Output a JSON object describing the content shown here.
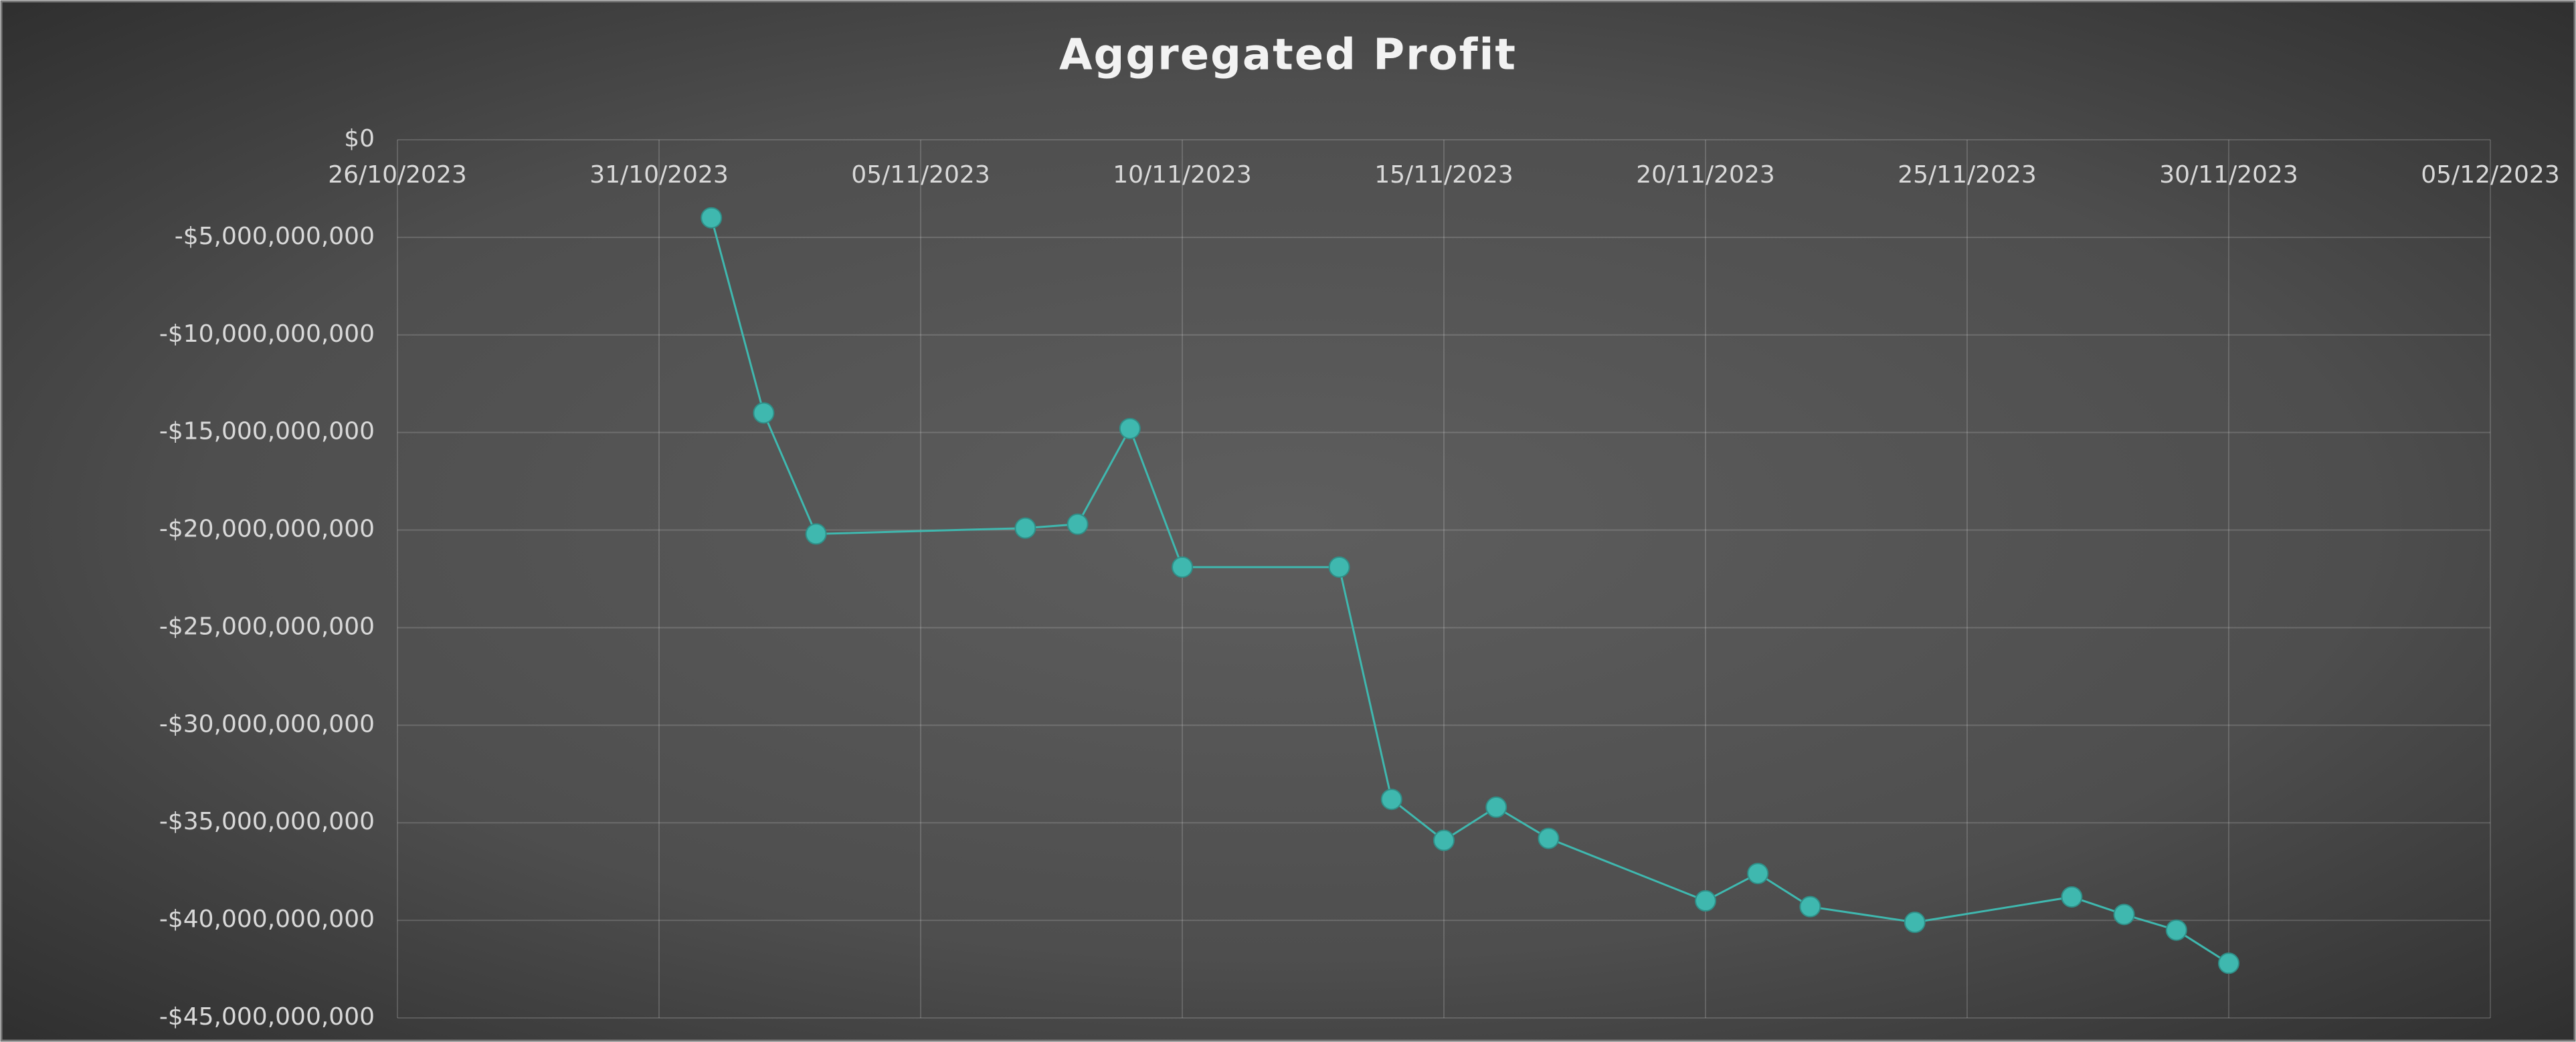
{
  "chart_data": {
    "type": "line",
    "title": "Aggregated Profit",
    "x": [
      "2023-11-01",
      "2023-11-02",
      "2023-11-03",
      "2023-11-07",
      "2023-11-08",
      "2023-11-09",
      "2023-11-10",
      "2023-11-13",
      "2023-11-14",
      "2023-11-15",
      "2023-11-16",
      "2023-11-17",
      "2023-11-20",
      "2023-11-21",
      "2023-11-22",
      "2023-11-24",
      "2023-11-27",
      "2023-11-28",
      "2023-11-29",
      "2023-11-30"
    ],
    "values": [
      -4000000000,
      -14000000000,
      -20200000000,
      -19900000000,
      -19700000000,
      -14800000000,
      -21900000000,
      -21900000000,
      -33800000000,
      -35900000000,
      -34200000000,
      -35800000000,
      -39000000000,
      -37600000000,
      -39300000000,
      -40100000000,
      -38800000000,
      -39700000000,
      -40500000000,
      -42200000000
    ],
    "color": "#3fb8af",
    "xlim": [
      "2023-10-26",
      "2023-12-05"
    ],
    "xticks": [
      {
        "value": "2023-10-26",
        "label": "26/10/2023"
      },
      {
        "value": "2023-10-31",
        "label": "31/10/2023"
      },
      {
        "value": "2023-11-05",
        "label": "05/11/2023"
      },
      {
        "value": "2023-11-10",
        "label": "10/11/2023"
      },
      {
        "value": "2023-11-15",
        "label": "15/11/2023"
      },
      {
        "value": "2023-11-20",
        "label": "20/11/2023"
      },
      {
        "value": "2023-11-25",
        "label": "25/11/2023"
      },
      {
        "value": "2023-11-30",
        "label": "30/11/2023"
      },
      {
        "value": "2023-12-05",
        "label": "05/12/2023"
      }
    ],
    "ylim": [
      -45000000000,
      0
    ],
    "yticks": [
      {
        "value": 0,
        "label": "$0"
      },
      {
        "value": -5000000000,
        "label": "-$5,000,000,000"
      },
      {
        "value": -10000000000,
        "label": "-$10,000,000,000"
      },
      {
        "value": -15000000000,
        "label": "-$15,000,000,000"
      },
      {
        "value": -20000000000,
        "label": "-$20,000,000,000"
      },
      {
        "value": -25000000000,
        "label": "-$25,000,000,000"
      },
      {
        "value": -30000000000,
        "label": "-$30,000,000,000"
      },
      {
        "value": -35000000000,
        "label": "-$35,000,000,000"
      },
      {
        "value": -40000000000,
        "label": "-$40,000,000,000"
      },
      {
        "value": -45000000000,
        "label": "-$45,000,000,000"
      }
    ],
    "grid": true
  }
}
